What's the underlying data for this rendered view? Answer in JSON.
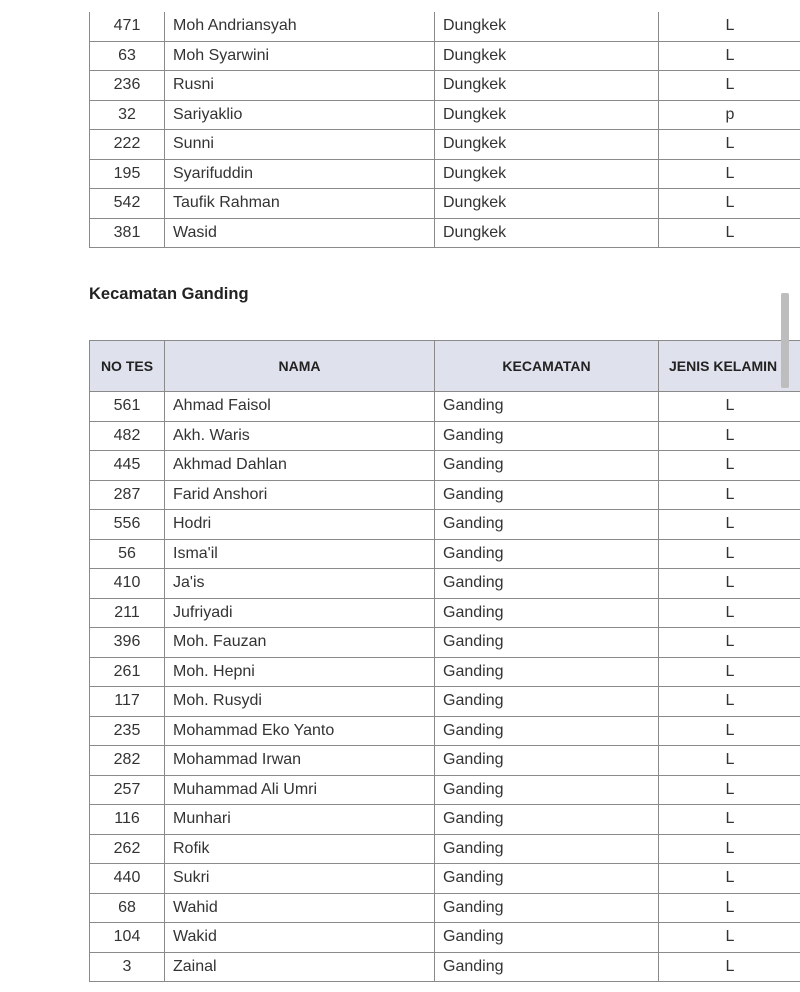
{
  "table_dungkek": {
    "rows": [
      [
        "471",
        "Moh Andriansyah",
        "Dungkek",
        "L"
      ],
      [
        "63",
        "Moh Syarwini",
        "Dungkek",
        "L"
      ],
      [
        "236",
        "Rusni",
        "Dungkek",
        "L"
      ],
      [
        "32",
        "Sariyaklio",
        "Dungkek",
        "p"
      ],
      [
        "222",
        "Sunni",
        "Dungkek",
        "L"
      ],
      [
        "195",
        "Syarifuddin",
        "Dungkek",
        "L"
      ],
      [
        "542",
        "Taufik Rahman",
        "Dungkek",
        "L"
      ],
      [
        "381",
        "Wasid",
        "Dungkek",
        "L"
      ]
    ]
  },
  "section_ganding": {
    "title": "Kecamatan Ganding",
    "headers": [
      "NO TES",
      "NAMA",
      "KECAMATAN",
      "JENIS KELAMIN"
    ],
    "rows": [
      [
        "561",
        "Ahmad Faisol",
        "Ganding",
        "L"
      ],
      [
        "482",
        "Akh. Waris",
        "Ganding",
        "L"
      ],
      [
        "445",
        "Akhmad Dahlan",
        "Ganding",
        "L"
      ],
      [
        "287",
        "Farid Anshori",
        "Ganding",
        "L"
      ],
      [
        "556",
        "Hodri",
        "Ganding",
        "L"
      ],
      [
        "56",
        "Isma'il",
        "Ganding",
        "L"
      ],
      [
        "410",
        "Ja'is",
        "Ganding",
        "L"
      ],
      [
        "211",
        "Jufriyadi",
        "Ganding",
        "L"
      ],
      [
        "396",
        "Moh. Fauzan",
        "Ganding",
        "L"
      ],
      [
        "261",
        "Moh. Hepni",
        "Ganding",
        "L"
      ],
      [
        "117",
        "Moh. Rusydi",
        "Ganding",
        "L"
      ],
      [
        "235",
        "Mohammad Eko Yanto",
        "Ganding",
        "L"
      ],
      [
        "282",
        "Mohammad Irwan",
        "Ganding",
        "L"
      ],
      [
        "257",
        "Muhammad Ali Umri",
        "Ganding",
        "L"
      ],
      [
        "116",
        "Munhari",
        "Ganding",
        "L"
      ],
      [
        "262",
        "Rofik",
        "Ganding",
        "L"
      ],
      [
        "440",
        "Sukri",
        "Ganding",
        "L"
      ],
      [
        "68",
        "Wahid",
        "Ganding",
        "L"
      ],
      [
        "104",
        "Wakid",
        "Ganding",
        "L"
      ],
      [
        "3",
        "Zainal",
        "Ganding",
        "L"
      ]
    ]
  }
}
